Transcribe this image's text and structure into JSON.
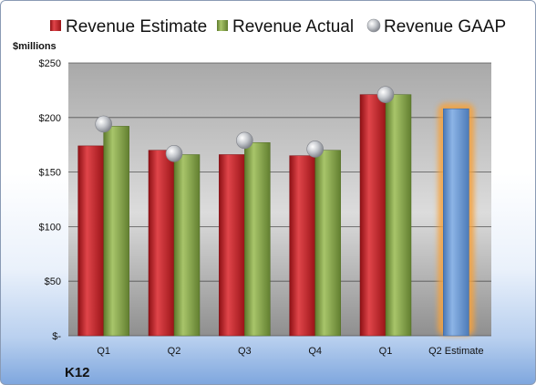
{
  "company": "K12",
  "chart_data": {
    "type": "bar",
    "ylabel": "$millions",
    "ylim": [
      0,
      250
    ],
    "yticks": [
      0,
      50,
      100,
      150,
      200,
      250
    ],
    "ytick_labels": [
      "$-",
      "$50",
      "$100",
      "$150",
      "$200",
      "$250"
    ],
    "categories": [
      "Q1",
      "Q2",
      "Q3",
      "Q4",
      "Q1",
      "Q2 Estimate"
    ],
    "series": [
      {
        "name": "Revenue Estimate",
        "kind": "bar",
        "color": "#c8282d",
        "values": [
          174,
          170,
          166,
          165,
          221,
          208
        ]
      },
      {
        "name": "Revenue Actual",
        "kind": "bar",
        "color": "#8cab4f",
        "values": [
          192,
          166,
          177,
          170,
          221,
          null
        ]
      },
      {
        "name": "Revenue GAAP",
        "kind": "marker",
        "color": "#b8bcc4",
        "values": [
          194,
          167,
          179,
          171,
          221,
          null
        ]
      }
    ],
    "estimate_bar_color": "#6f9fd8",
    "grid": true,
    "legend": "top"
  }
}
